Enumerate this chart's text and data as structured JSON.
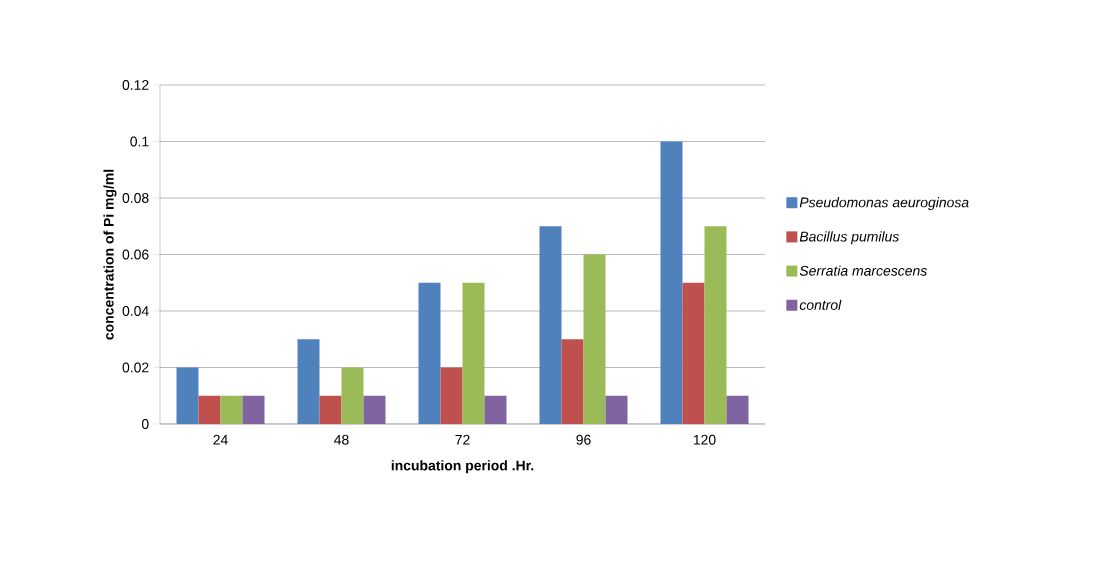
{
  "chart_data": {
    "type": "bar",
    "xlabel": "incubation period .Hr.",
    "ylabel": "concentration  of Pi mg/ml",
    "categories": [
      "24",
      "48",
      "72",
      "96",
      "120"
    ],
    "series": [
      {
        "name": "Pseudomonas aeuroginosa",
        "color": "#4f81bd",
        "values": [
          0.02,
          0.03,
          0.05,
          0.07,
          0.1
        ]
      },
      {
        "name": "Bacillus pumilus",
        "color": "#c0504d",
        "values": [
          0.01,
          0.01,
          0.02,
          0.03,
          0.05
        ]
      },
      {
        "name": "Serratia marcescens",
        "color": "#9bbb59",
        "values": [
          0.01,
          0.02,
          0.05,
          0.06,
          0.07
        ]
      },
      {
        "name": "control",
        "color": "#8064a2",
        "values": [
          0.01,
          0.01,
          0.01,
          0.01,
          0.01
        ]
      }
    ],
    "ylim": [
      0,
      0.12
    ],
    "yticks": [
      0,
      0.02,
      0.04,
      0.06,
      0.08,
      0.1,
      0.12
    ],
    "grid": "y",
    "legend": "right"
  }
}
